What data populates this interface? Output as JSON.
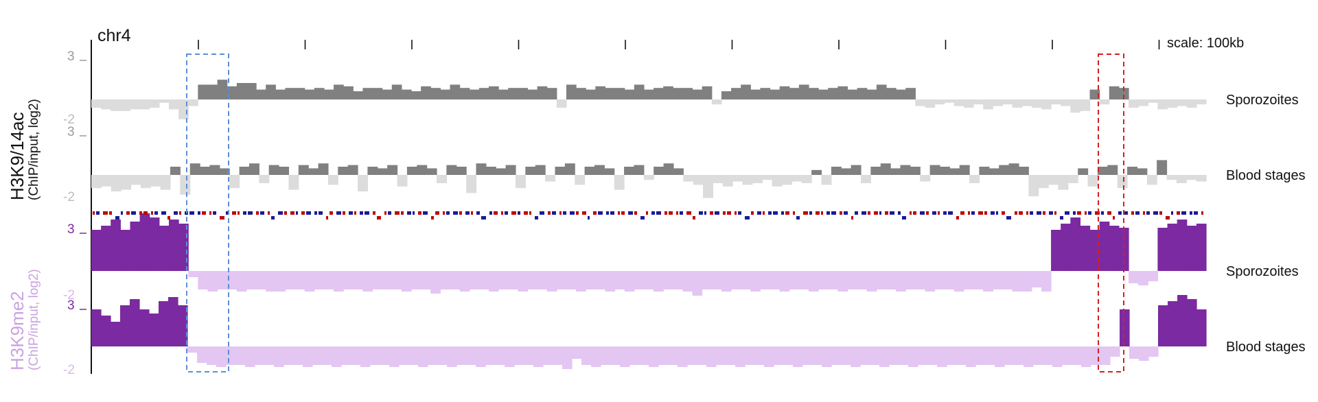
{
  "chart_data": {
    "type": "area",
    "chromosome": "chr4",
    "scale_label": "scale: 100kb",
    "tick_count": 10,
    "groups": [
      {
        "ylabel": "H3K9/14ac",
        "ylabel_sub": "(ChIP/input, log2)",
        "pos_color": "#808080",
        "neg_color": "#dcdcdc",
        "tracks": [
          {
            "name": "Sporozoites",
            "ylim": [
              -2,
              3
            ],
            "y_top_label": "3",
            "y_bottom_label": "-2",
            "values": [
              -0.5,
              -0.6,
              -0.7,
              -0.7,
              -0.6,
              -0.6,
              -0.5,
              -0.2,
              -0.6,
              -1.2,
              -0.4,
              0.9,
              0.9,
              1.2,
              0.8,
              1.0,
              1.0,
              0.6,
              0.9,
              0.6,
              0.7,
              0.7,
              0.6,
              0.7,
              0.6,
              0.9,
              0.8,
              0.5,
              0.7,
              0.7,
              0.6,
              0.9,
              0.6,
              0.5,
              0.8,
              0.7,
              0.6,
              0.9,
              0.7,
              0.6,
              0.7,
              0.8,
              0.6,
              0.7,
              0.7,
              0.6,
              0.8,
              0.7,
              -0.5,
              0.9,
              0.7,
              0.6,
              0.8,
              0.7,
              0.7,
              0.6,
              0.9,
              0.6,
              0.7,
              0.8,
              0.7,
              0.7,
              0.6,
              0.8,
              -0.3,
              0.5,
              0.7,
              0.9,
              0.6,
              0.7,
              0.6,
              0.8,
              0.7,
              0.9,
              0.7,
              0.6,
              0.7,
              0.8,
              0.6,
              0.7,
              0.6,
              0.9,
              0.7,
              0.6,
              0.7,
              -0.4,
              -0.5,
              -0.3,
              -0.2,
              -0.4,
              -0.5,
              -0.3,
              -0.6,
              -0.4,
              -0.3,
              -0.5,
              -0.4,
              -0.5,
              -0.6,
              -0.3,
              -0.4,
              -0.8,
              -0.7,
              0.6,
              -0.3,
              0.8,
              0.7,
              -0.5,
              -0.4,
              -0.2,
              -0.6,
              -0.5,
              -0.4,
              -0.5,
              -0.3
            ]
          },
          {
            "name": "Blood stages",
            "ylim": [
              -2,
              3
            ],
            "y_top_label": "3",
            "y_bottom_label": "-2",
            "values": [
              -0.8,
              -0.7,
              -1.0,
              -0.9,
              -0.6,
              -0.8,
              -0.7,
              -0.9,
              0.5,
              -1.2,
              0.7,
              0.5,
              0.6,
              0.4,
              -0.8,
              0.5,
              0.7,
              -0.5,
              0.6,
              0.5,
              -0.9,
              0.6,
              0.4,
              0.7,
              -0.6,
              0.5,
              0.6,
              -1.0,
              0.5,
              0.4,
              0.6,
              -0.7,
              0.5,
              0.6,
              0.4,
              -0.5,
              0.6,
              0.5,
              -1.1,
              0.7,
              0.5,
              0.4,
              0.6,
              -0.8,
              0.5,
              0.6,
              -0.4,
              0.5,
              0.7,
              -0.6,
              0.5,
              0.6,
              0.4,
              -0.9,
              0.5,
              0.6,
              -0.3,
              0.5,
              0.7,
              0.4,
              -0.4,
              -0.6,
              -1.4,
              -0.5,
              -0.7,
              -0.4,
              -0.6,
              -0.5,
              -0.3,
              -0.7,
              -0.6,
              -0.4,
              -0.5,
              0.3,
              -0.6,
              0.5,
              0.4,
              0.6,
              -0.5,
              0.5,
              0.7,
              0.4,
              0.6,
              0.5,
              -0.4,
              0.6,
              0.5,
              0.4,
              0.6,
              -0.5,
              0.5,
              0.4,
              0.6,
              0.7,
              0.5,
              -1.3,
              -0.8,
              -0.6,
              -0.9,
              -0.5,
              0.4,
              -0.7,
              0.5,
              0.6,
              -0.8,
              0.5,
              0.4,
              -0.6,
              0.9,
              -0.3,
              -0.5,
              -0.3,
              -0.4
            ]
          }
        ]
      },
      {
        "ylabel": "H3K9me2",
        "ylabel_sub": "(ChIP/input, log2)",
        "pos_color": "#7b2aa1",
        "neg_color": "#e3c6f2",
        "tracks": [
          {
            "name": "Sporozoites",
            "ylim": [
              -2,
              3
            ],
            "y_top_label": "3",
            "y_bottom_label": "-2",
            "values": [
              2.0,
              2.2,
              2.5,
              2.0,
              2.4,
              2.8,
              2.6,
              2.2,
              2.5,
              2.3,
              -0.3,
              -0.9,
              -1.0,
              -0.9,
              -0.9,
              -1.0,
              -0.9,
              -0.9,
              -1.0,
              -1.0,
              -0.9,
              -0.9,
              -1.0,
              -0.9,
              -0.9,
              -1.0,
              -0.9,
              -0.9,
              -1.0,
              -0.9,
              -0.9,
              -0.9,
              -1.0,
              -0.9,
              -0.9,
              -1.1,
              -0.9,
              -0.9,
              -1.0,
              -0.9,
              -0.9,
              -1.0,
              -0.9,
              -0.9,
              -1.0,
              -0.9,
              -0.9,
              -1.0,
              -0.9,
              -0.9,
              -1.0,
              -0.9,
              -0.9,
              -1.0,
              -0.9,
              -1.0,
              -0.9,
              -0.9,
              -1.0,
              -0.9,
              -0.9,
              -1.0,
              -1.2,
              -0.9,
              -0.9,
              -1.0,
              -0.9,
              -0.9,
              -1.0,
              -0.9,
              -0.9,
              -1.0,
              -0.9,
              -0.9,
              -1.0,
              -0.9,
              -0.9,
              -1.0,
              -0.9,
              -0.9,
              -1.0,
              -0.9,
              -0.9,
              -1.0,
              -0.9,
              -0.9,
              -1.0,
              -0.9,
              -0.9,
              -1.0,
              -0.9,
              -0.9,
              -1.0,
              -0.9,
              -0.9,
              -1.0,
              -1.0,
              -0.8,
              -1.0,
              2.0,
              2.3,
              2.6,
              2.2,
              2.0,
              2.4,
              2.2,
              2.1,
              -0.6,
              -0.7,
              -0.5,
              2.1,
              2.3,
              2.5,
              2.2,
              2.3
            ]
          },
          {
            "name": "Blood stages",
            "ylim": [
              -2,
              3
            ],
            "y_top_label": "3",
            "y_bottom_label": "-2",
            "values": [
              1.8,
              1.5,
              1.2,
              2.0,
              2.3,
              1.8,
              1.6,
              2.2,
              2.4,
              2.0,
              -0.3,
              -0.8,
              -0.9,
              -1.0,
              -0.9,
              -0.9,
              -1.0,
              -0.9,
              -0.9,
              -1.0,
              -0.9,
              -0.9,
              -1.0,
              -0.9,
              -0.9,
              -1.0,
              -0.9,
              -0.9,
              -1.0,
              -0.9,
              -0.9,
              -1.0,
              -0.9,
              -0.9,
              -1.0,
              -0.9,
              -0.9,
              -1.0,
              -0.9,
              -0.9,
              -1.0,
              -0.9,
              -0.9,
              -1.0,
              -0.9,
              -0.9,
              -1.0,
              -0.9,
              -0.9,
              -1.1,
              -0.6,
              -0.9,
              -1.0,
              -0.9,
              -0.9,
              -1.0,
              -0.9,
              -0.9,
              -1.0,
              -0.9,
              -0.9,
              -1.0,
              -0.9,
              -0.9,
              -1.0,
              -0.9,
              -0.9,
              -1.0,
              -0.9,
              -0.9,
              -1.0,
              -0.9,
              -0.9,
              -1.0,
              -0.9,
              -0.9,
              -1.0,
              -0.9,
              -0.9,
              -1.0,
              -0.9,
              -0.9,
              -1.0,
              -0.9,
              -0.9,
              -1.0,
              -0.9,
              -0.9,
              -1.0,
              -0.9,
              -0.9,
              -1.0,
              -0.9,
              -0.9,
              -1.0,
              -0.9,
              -0.9,
              -1.0,
              -0.9,
              -0.9,
              -1.0,
              -0.9,
              -0.9,
              -1.0,
              -0.9,
              -0.9,
              -0.5,
              1.8,
              -0.6,
              -0.7,
              -0.5,
              2.0,
              2.2,
              2.5,
              2.3,
              1.8
            ]
          }
        ]
      }
    ],
    "gene_track": {
      "colors": [
        "#c00000",
        "#1a1a9a"
      ],
      "pattern": [
        0,
        1,
        0,
        0,
        1,
        1,
        0,
        1,
        0,
        0,
        0,
        1,
        1,
        0,
        1,
        0,
        1,
        1,
        1,
        0,
        0,
        1,
        0,
        1,
        0,
        0,
        1,
        1,
        0,
        1,
        0,
        1,
        1,
        0,
        0,
        1,
        0,
        1,
        1,
        1,
        0,
        0,
        1,
        0,
        1,
        0,
        1,
        1,
        0,
        0
      ]
    },
    "highlight_regions": [
      {
        "color": "#5b8ed6",
        "label": ""
      },
      {
        "color": "#d42020",
        "label": ""
      }
    ]
  }
}
